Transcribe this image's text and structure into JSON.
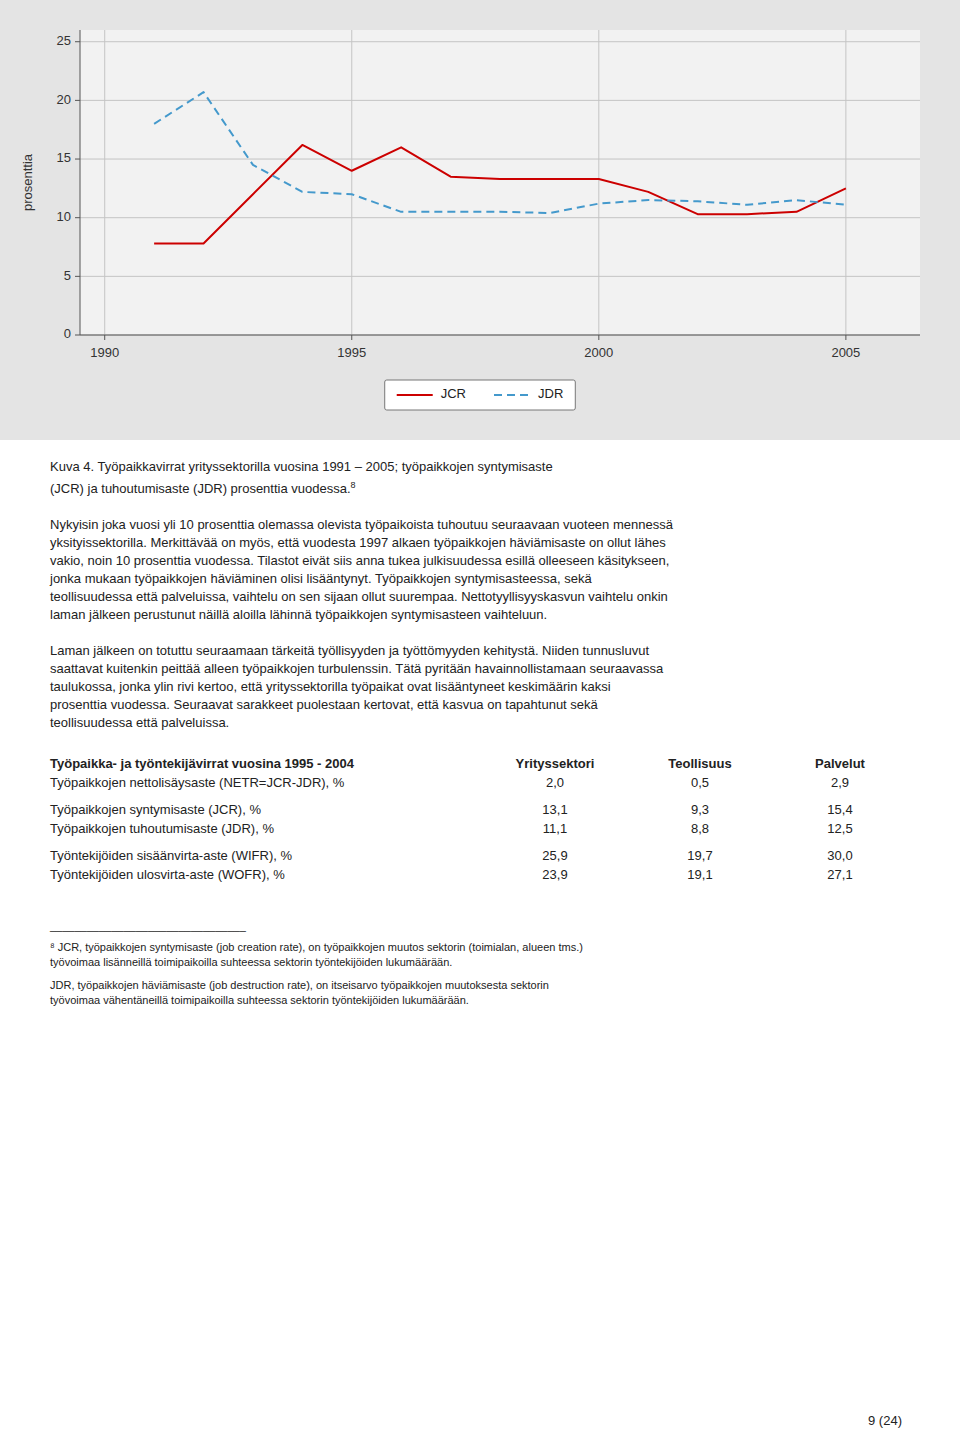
{
  "chart_data": {
    "type": "line",
    "x": [
      1991,
      1992,
      1993,
      1994,
      1995,
      1996,
      1997,
      1998,
      1999,
      2000,
      2001,
      2002,
      2003,
      2004,
      2005
    ],
    "series": [
      {
        "name": "JCR",
        "color": "#cc0000",
        "line_style": "solid",
        "values": [
          7.8,
          7.8,
          12.0,
          16.2,
          14.0,
          16.0,
          13.5,
          13.3,
          13.3,
          13.3,
          12.2,
          10.3,
          10.3,
          10.5,
          12.5
        ]
      },
      {
        "name": "JDR",
        "color": "#4499cc",
        "line_style": "dashed",
        "values": [
          18.0,
          20.7,
          14.5,
          12.2,
          12.0,
          10.5,
          10.5,
          10.5,
          10.4,
          11.2,
          11.5,
          11.4,
          11.1,
          11.5,
          11.1
        ]
      }
    ],
    "y_label": "prosenttia",
    "xlim": [
      1989.5,
      2006.5
    ],
    "xticks": [
      1990,
      1995,
      2000,
      2005
    ],
    "ylim": [
      0,
      26
    ],
    "yticks": [
      0,
      5,
      10,
      15,
      20,
      25
    ],
    "grid": true,
    "legend": "bottom"
  },
  "page_text": {
    "caption_lines": [
      "Kuva 4. Työpaikkavirrat yrityssektorilla vuosina 1991 – 2005; työpaikkojen syntymisaste",
      "(JCR) ja tuhoutumisaste (JDR) prosenttia vuodessa."
    ],
    "caption_superscript": "8",
    "paragraphs": [
      [
        "Nykyisin joka vuosi yli 10 prosenttia olemassa olevista työpaikoista tuhoutuu seuraavaan vuoteen mennessä",
        "yksityissektorilla. Merkittävää on myös, että vuodesta 1997 alkaen työpaikkojen häviämisaste on ollut lähes",
        "vakio, noin 10 prosenttia vuodessa. Tilastot eivät siis anna tukea julkisuudessa esillä olleeseen käsitykseen,",
        "jonka mukaan työpaikkojen häviäminen olisi lisääntynyt. Työpaikkojen syntymisasteessa, sekä",
        "teollisuudessa että palveluissa,  vaihtelu on sen sijaan ollut suurempaa. Nettotyyllisyyskasvun vaihtelu onkin",
        "laman jälkeen perustunut näillä aloilla lähinnä työpaikkojen syntymisasteen vaihteluun."
      ],
      [
        "Laman jälkeen on totuttu seuraamaan tärkeitä työllisyyden ja työttömyyden kehitystä. Niiden tunnusluvut",
        "saattavat kuitenkin peittää alleen työpaikkojen turbulenssin. Tätä pyritään havainnollistamaan seuraavassa",
        "taulukossa, jonka ylin rivi kertoo, että yrityssektorilla työpaikat ovat lisääntyneet keskimäärin kaksi",
        "prosenttia vuodessa. Seuraavat sarakkeet puolestaan kertovat, että kasvua on tapahtunut sekä",
        "teollisuudessa että palveluissa."
      ]
    ],
    "table_header": [
      "Työpaikka- ja työntekijävirrat vuosina 1995 - 2004",
      "Yrityssektori",
      "Teollisuus",
      "Palvelut"
    ],
    "table_groups": [
      [
        [
          "Työpaikkojen nettolisäysaste (NETR=JCR-JDR), %",
          "2,0",
          "0,5",
          "2,9"
        ]
      ],
      [
        [
          "Työpaikkojen syntymisaste (JCR), %",
          "13,1",
          "9,3",
          "15,4"
        ],
        [
          "Työpaikkojen tuhoutumisaste (JDR), %",
          "11,1",
          "8,8",
          "12,5"
        ]
      ],
      [
        [
          "Työntekijöiden sisäänvirta-aste (WIFR), %",
          "25,9",
          "19,7",
          "30,0"
        ],
        [
          "Työntekijöiden ulosvirta-aste (WOFR), %",
          "23,9",
          "19,1",
          "27,1"
        ]
      ]
    ],
    "footnote_line": "________________________________",
    "footnotes": [
      [
        "⁸ JCR, työpaikkojen syntymisaste (job creation rate), on työpaikkojen muutos sektorin (toimialan, alueen tms.)",
        "työvoimaa lisänneillä toimipaikoilla suhteessa sektorin työntekijöiden lukumäärään."
      ],
      [
        "JDR, työpaikkojen häviämisaste (job destruction rate), on itseisarvo työpaikkojen muutoksesta sektorin",
        "työvoimaa vähentäneillä toimipaikoilla suhteessa sektorin työntekijöiden lukumäärään."
      ]
    ],
    "page_number": "9 (24)"
  }
}
